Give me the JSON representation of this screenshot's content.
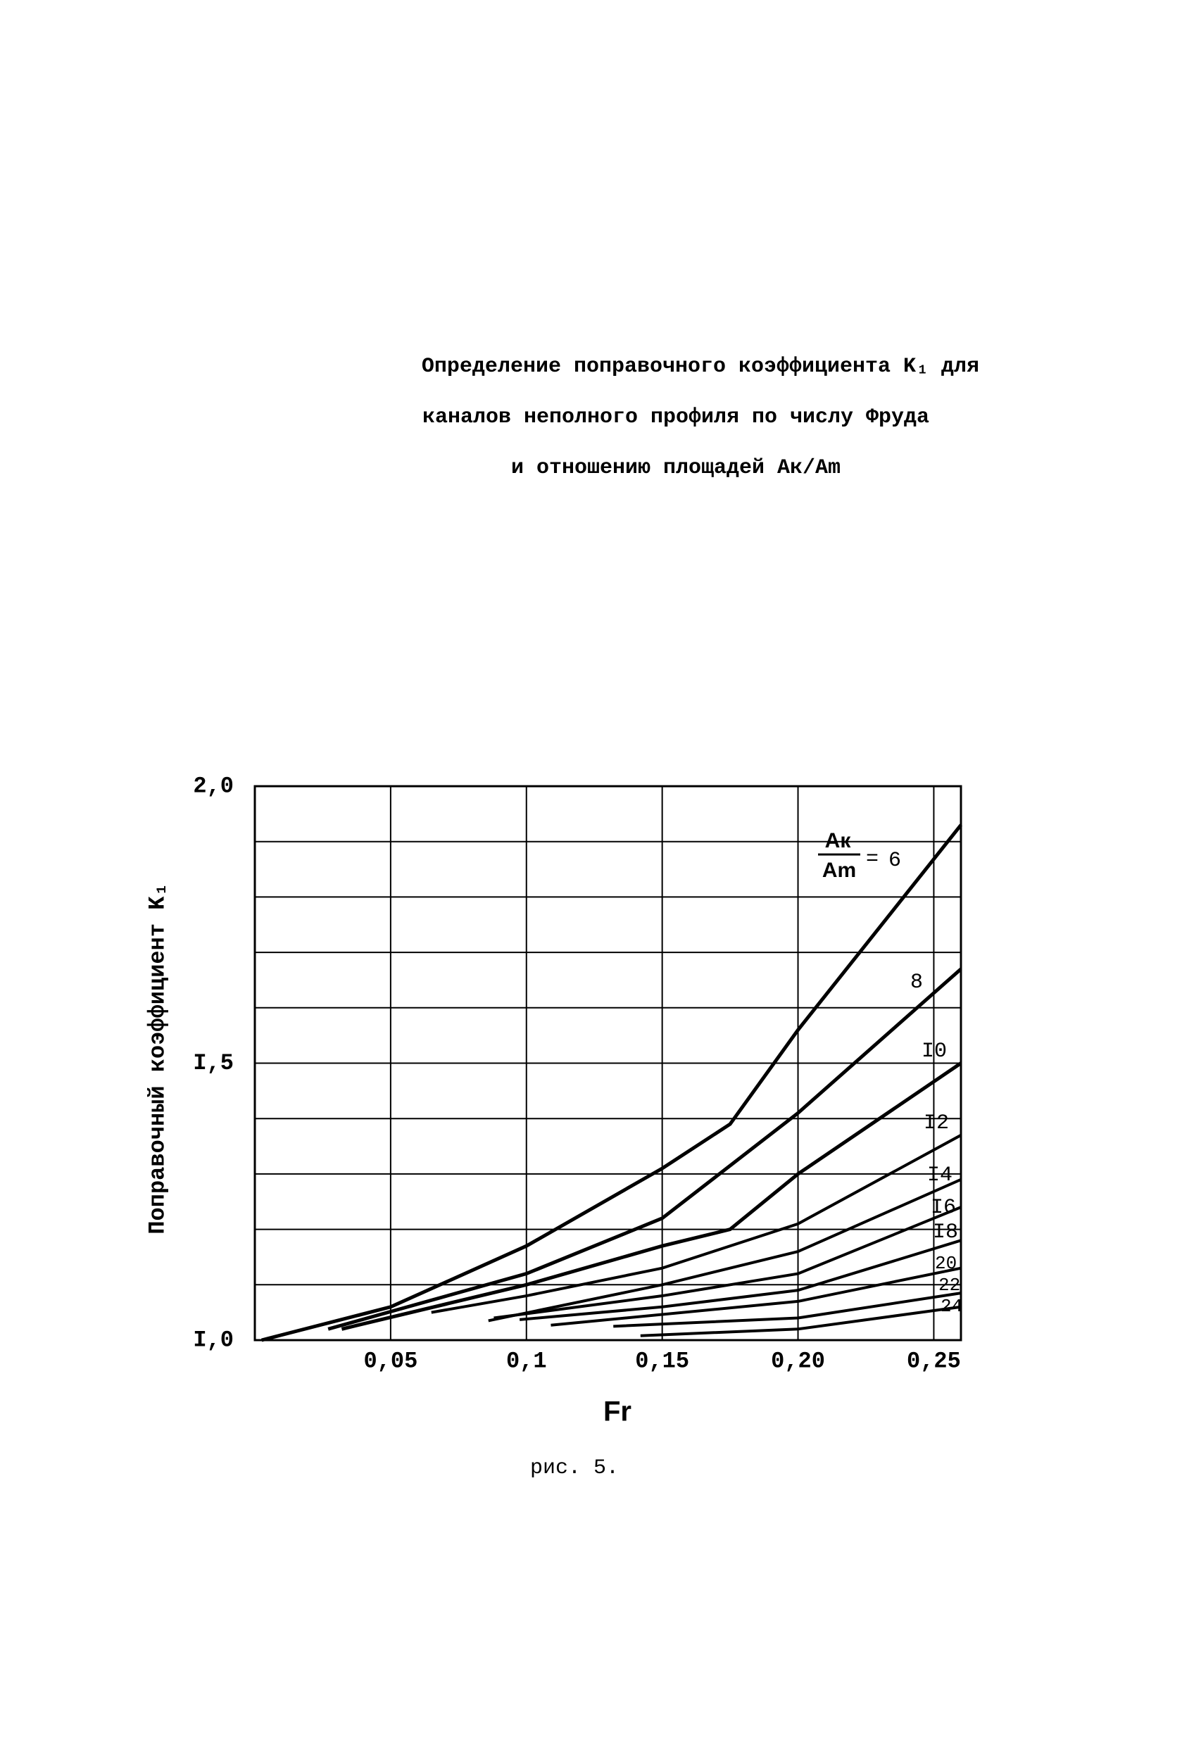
{
  "chart_data": {
    "type": "line",
    "title_lines": [
      "Определение поправочного коэффициента K₁ для",
      "каналов неполного профиля по числу Фруда",
      "и отношению площадей Aк/Am"
    ],
    "y_label": "Поправочный коэффициент K₁",
    "x_label": "Fr",
    "caption": "рис. 5.",
    "fraction": {
      "numerator": "Aк",
      "denominator": "Am",
      "equals": "="
    },
    "xlim": [
      0,
      0.26
    ],
    "ylim": [
      1.0,
      2.0
    ],
    "xticks": [
      {
        "value": 0.05,
        "label": "0,05"
      },
      {
        "value": 0.1,
        "label": "0,1"
      },
      {
        "value": 0.15,
        "label": "0,15"
      },
      {
        "value": 0.2,
        "label": "0,20"
      },
      {
        "value": 0.25,
        "label": "0,25"
      }
    ],
    "yticks": [
      {
        "value": 1.0,
        "label": "I,0"
      },
      {
        "value": 1.5,
        "label": "I,5"
      },
      {
        "value": 2.0,
        "label": "2,0"
      }
    ],
    "ygrid": [
      1.1,
      1.2,
      1.3,
      1.4,
      1.6,
      1.7,
      1.8,
      1.9
    ],
    "grid": true,
    "series": [
      {
        "name": "6",
        "color": "#000000",
        "x": [
          0.0025,
          0.05,
          0.1,
          0.15,
          0.175,
          0.2,
          0.26
        ],
        "values": [
          1.0,
          1.06,
          1.17,
          1.31,
          1.39,
          1.56,
          1.93
        ]
      },
      {
        "name": "8",
        "color": "#000000",
        "x": [
          0.027,
          0.1,
          0.15,
          0.2,
          0.26
        ],
        "values": [
          1.02,
          1.12,
          1.22,
          1.41,
          1.67
        ]
      },
      {
        "name": "I0",
        "color": "#000000",
        "x": [
          0.032,
          0.1,
          0.15,
          0.175,
          0.2,
          0.26
        ],
        "values": [
          1.02,
          1.1,
          1.17,
          1.2,
          1.3,
          1.5
        ]
      },
      {
        "name": "I2",
        "color": "#000000",
        "x": [
          0.065,
          0.1,
          0.15,
          0.2,
          0.26
        ],
        "values": [
          1.05,
          1.08,
          1.13,
          1.21,
          1.37
        ]
      },
      {
        "name": "I4",
        "color": "#000000",
        "x": [
          0.086,
          0.15,
          0.2,
          0.26
        ],
        "values": [
          1.035,
          1.1,
          1.16,
          1.29
        ]
      },
      {
        "name": "I6",
        "color": "#000000",
        "x": [
          0.088,
          0.15,
          0.2,
          0.26
        ],
        "values": [
          1.04,
          1.08,
          1.12,
          1.24
        ]
      },
      {
        "name": "I8",
        "color": "#000000",
        "x": [
          0.0975,
          0.15,
          0.2,
          0.26
        ],
        "values": [
          1.037,
          1.06,
          1.09,
          1.18
        ]
      },
      {
        "name": "20",
        "color": "#000000",
        "x": [
          0.109,
          0.2,
          0.26
        ],
        "values": [
          1.027,
          1.07,
          1.13
        ]
      },
      {
        "name": "22",
        "color": "#000000",
        "x": [
          0.132,
          0.2,
          0.26
        ],
        "values": [
          1.025,
          1.04,
          1.085
        ]
      },
      {
        "name": "24",
        "color": "#000000",
        "x": [
          0.142,
          0.2,
          0.26
        ],
        "values": [
          1.008,
          1.02,
          1.06
        ]
      }
    ]
  }
}
